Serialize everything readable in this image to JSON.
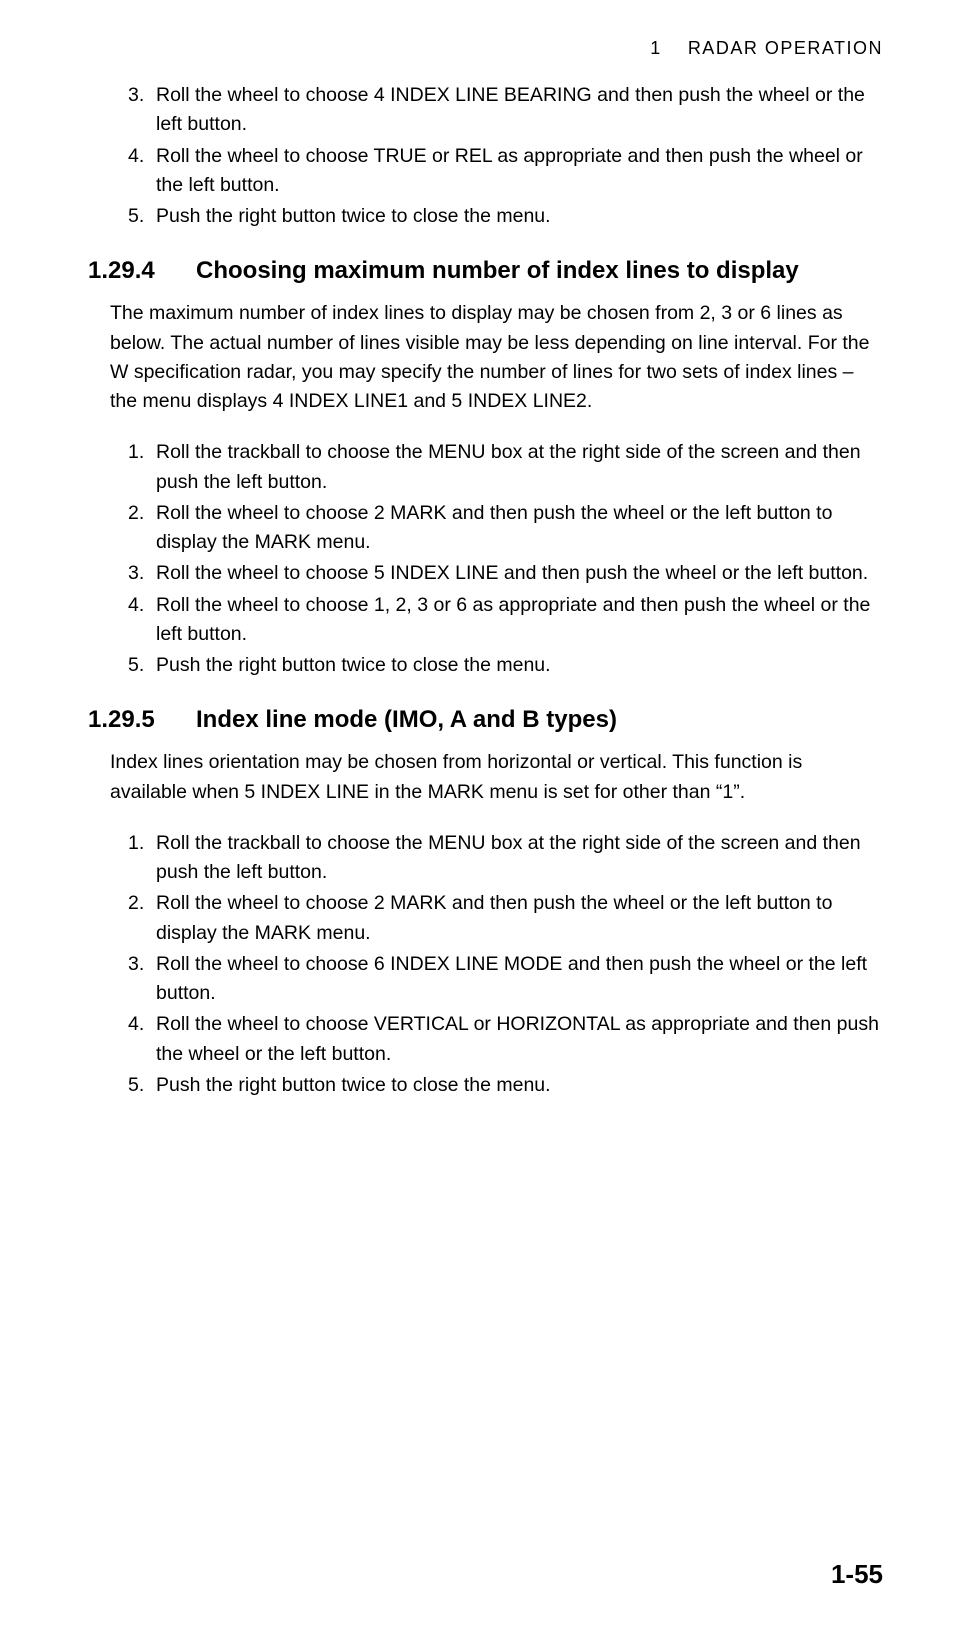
{
  "header": {
    "chapter_num": "1",
    "chapter_title": "RADAR  OPERATION"
  },
  "list_a": {
    "items": [
      {
        "num": "3.",
        "text": "Roll the wheel to choose 4 INDEX LINE BEARING and then push the wheel or the left button."
      },
      {
        "num": "4.",
        "text": "Roll the wheel to choose TRUE or REL as appropriate and then push the wheel or the left button."
      },
      {
        "num": "5.",
        "text": "Push the right button twice to close the menu."
      }
    ]
  },
  "section_1": {
    "number": "1.29.4",
    "title": "Choosing maximum number of index lines to display",
    "body": "The maximum number of index lines to display may be chosen from 2, 3 or 6 lines as below. The actual number of lines visible may be less depending on line interval. For the W specification radar, you may specify the number of lines for two sets of index lines – the menu displays 4 INDEX LINE1 and 5 INDEX LINE2.",
    "items": [
      {
        "num": "1.",
        "text": "Roll the trackball to choose the MENU box at the right side of the screen and then push the left button."
      },
      {
        "num": "2.",
        "text": "Roll the wheel to choose 2 MARK and then push the wheel or the left button to display the MARK menu."
      },
      {
        "num": "3.",
        "text": "Roll the wheel to choose 5 INDEX LINE and then push the wheel or the left button."
      },
      {
        "num": "4.",
        "text": "Roll the wheel to choose 1, 2, 3 or 6 as appropriate and then push the wheel or the left button."
      },
      {
        "num": "5.",
        "text": "Push the right button twice to close the menu."
      }
    ]
  },
  "section_2": {
    "number": "1.29.5",
    "title": "Index line mode (IMO, A and B types)",
    "body": "Index lines orientation may be chosen from horizontal or vertical. This function is available when 5 INDEX LINE in the MARK menu is set for other than “1”.",
    "items": [
      {
        "num": "1.",
        "text": "Roll the trackball to choose the MENU box at the right side of the screen and then push the left button."
      },
      {
        "num": "2.",
        "text": "Roll the wheel to choose 2 MARK and then push the wheel or the left button to display the MARK menu."
      },
      {
        "num": "3.",
        "text": "Roll the wheel to choose 6 INDEX LINE MODE and then push the wheel or the left button."
      },
      {
        "num": "4.",
        "text": "Roll the wheel to choose VERTICAL or HORIZONTAL as appropriate and then push the wheel or the left button."
      },
      {
        "num": "5.",
        "text": "Push the right button twice to close the menu."
      }
    ]
  },
  "page_number": "1-55"
}
